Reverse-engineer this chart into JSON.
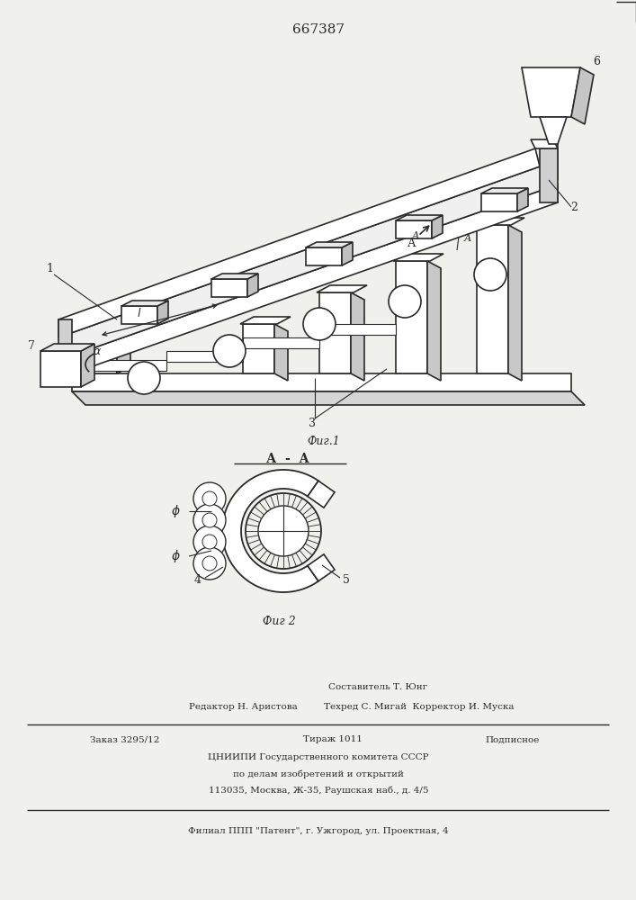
{
  "title": "667387",
  "fig1_label": "Фиг.1",
  "fig2_label": "Фиг 2",
  "section_label": "А  -  А",
  "bg_color": "#f0f0ec",
  "lc": "#2a2a2a",
  "footer": {
    "line1": "Составитель Т. Юнг",
    "line2a": "Редактор Н. Аристова",
    "line2b": "Техред С. Мигай  Корректор И. Муска",
    "line3a": "Заказ 3295/12",
    "line3b": "Тираж 1011",
    "line3c": "Подписное",
    "line4": "ЦНИИПИ Государственного комитета СССР",
    "line5": "по делам изобретений и открытий",
    "line6": "113035, Москва, Ж-35, Раушская наб., д. 4/5",
    "line7": "Филиал ППП \"Патент\", г. Ужгород, ул. Проектная, 4"
  }
}
